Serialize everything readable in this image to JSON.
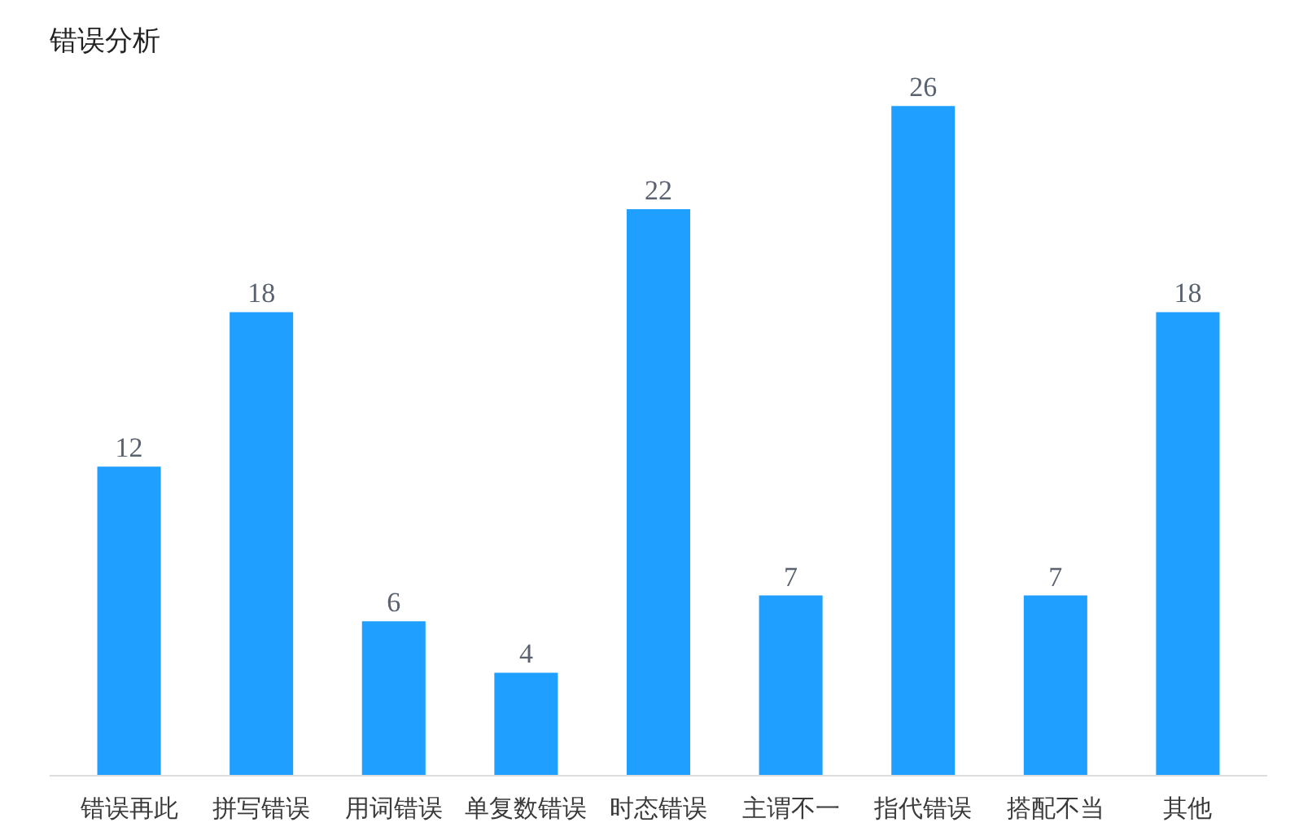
{
  "chart_data": {
    "type": "bar",
    "title": "错误分析",
    "categories": [
      "错误再此",
      "拼写错误",
      "用词错误",
      "单复数错误",
      "时态错误",
      "主谓不一",
      "指代错误",
      "搭配不当",
      "其他"
    ],
    "values": [
      12,
      18,
      6,
      4,
      22,
      7,
      26,
      7,
      18
    ],
    "color": "#1f9fff",
    "data_labels": true,
    "grid": false,
    "tick_labels": "x"
  }
}
